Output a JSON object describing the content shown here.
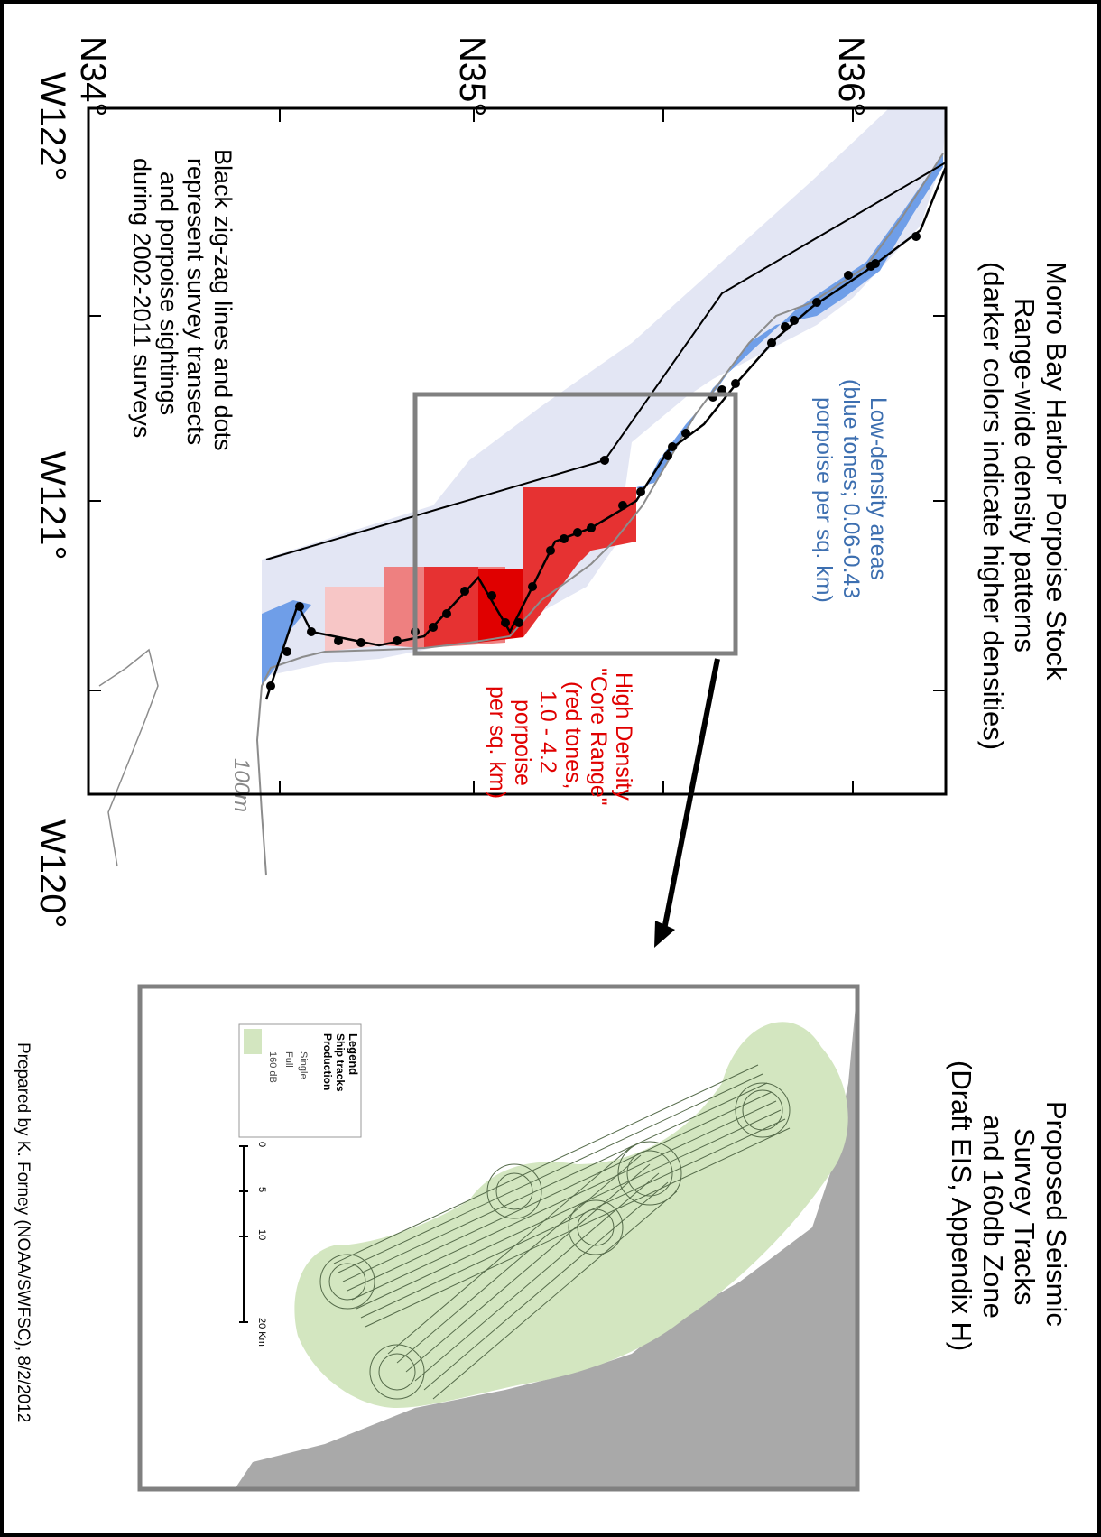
{
  "map": {
    "title": {
      "line1": "Morro Bay Harbor Porpoise Stock",
      "line2": "Range-wide density patterns",
      "line3": "(darker colors indicate higher densities)"
    },
    "latitude_labels": [
      "N34°",
      "N35°",
      "N36°"
    ],
    "longitude_labels": [
      "W122°",
      "W121°",
      "W120°"
    ],
    "low_density_note": {
      "line1": "Low-density areas",
      "line2": "(blue tones; 0.06-0.43",
      "line3": "porpoise per sq. km)"
    },
    "high_density_note": {
      "line1": "High Density",
      "line2": "\"Core Range\"",
      "line3": "(red tones,",
      "line4": "1.0 - 4.2",
      "line5": "porpoise",
      "line6": "per sq. km)"
    },
    "transects_note": {
      "line1": "Black zig-zag lines and dots",
      "line2": "represent survey transects",
      "line3": "and porpoise sightings",
      "line4": "during 2002-2011 surveys"
    },
    "depth_label": "100m",
    "colors": {
      "low_density": "#6f9ee8",
      "outer_area": "#e3e6f4",
      "high_density_light": "#f7c6c6",
      "high_density_mid": "#ee8080",
      "high_density_core": "#e63232",
      "high_density_peak": "#e00000",
      "blue_text": "#3d6fb0",
      "red_text": "#e00000"
    }
  },
  "inset": {
    "title": {
      "line1": "Proposed Seismic",
      "line2": "Survey Tracks",
      "line3": "and 160db Zone",
      "line4": "(Draft EIS, Appendix H)"
    },
    "legend": {
      "title": "Legend",
      "items": [
        "Ship tracks",
        "Production",
        "Single",
        "Full",
        "160 dB"
      ]
    },
    "scale_labels": [
      "0",
      "5",
      "10",
      "20 Km"
    ],
    "colors": {
      "zone_fill": "#d3e6c0",
      "land": "#a9a9a9",
      "tracks": "#556b4a"
    }
  },
  "credit": "Prepared by K. Forney (NOAA/SWFSC), 8/2/2012"
}
